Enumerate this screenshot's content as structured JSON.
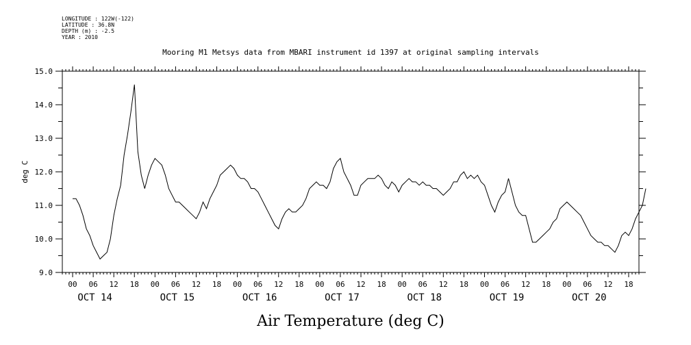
{
  "header": {
    "longitude": "LONGITUDE : 122W(-122)",
    "latitude": "LATITUDE : 36.8N",
    "depth": "DEPTH (m) : -2.5",
    "year": "YEAR : 2010"
  },
  "chart_data": {
    "type": "line",
    "title": "Mooring M1 Metsys data from MBARI instrument id 1397 at original sampling intervals",
    "xlabel": "Air Temperature (deg C)",
    "ylabel": "deg C",
    "ylim": [
      9.0,
      15.0
    ],
    "yticks": [
      9.0,
      10.0,
      11.0,
      12.0,
      13.0,
      14.0,
      15.0
    ],
    "ytick_labels": [
      "9.0",
      "10.0",
      "11.0",
      "12.0",
      "13.0",
      "14.0",
      "15.0"
    ],
    "xlim_hours": [
      -3,
      165
    ],
    "hour_tick_labels": [
      "00",
      "06",
      "12",
      "18"
    ],
    "day_labels": [
      "OCT 14",
      "OCT 15",
      "OCT 16",
      "OCT 17",
      "OCT 18",
      "OCT 19",
      "OCT 20"
    ],
    "grid": false,
    "series": [
      {
        "values": [
          {
            "t": "2010-10-14 00:00",
            "y": 11.2
          },
          {
            "t": "2010-10-14 01:00",
            "y": 11.2
          },
          {
            "t": "2010-10-14 02:00",
            "y": 11.0
          },
          {
            "t": "2010-10-14 03:00",
            "y": 10.7
          },
          {
            "t": "2010-10-14 04:00",
            "y": 10.3
          },
          {
            "t": "2010-10-14 05:00",
            "y": 10.1
          },
          {
            "t": "2010-10-14 06:00",
            "y": 9.8
          },
          {
            "t": "2010-10-14 07:00",
            "y": 9.6
          },
          {
            "t": "2010-10-14 08:00",
            "y": 9.4
          },
          {
            "t": "2010-10-14 09:00",
            "y": 9.5
          },
          {
            "t": "2010-10-14 10:00",
            "y": 9.6
          },
          {
            "t": "2010-10-14 11:00",
            "y": 10.0
          },
          {
            "t": "2010-10-14 12:00",
            "y": 10.7
          },
          {
            "t": "2010-10-14 13:00",
            "y": 11.2
          },
          {
            "t": "2010-10-14 14:00",
            "y": 11.6
          },
          {
            "t": "2010-10-14 15:00",
            "y": 12.5
          },
          {
            "t": "2010-10-14 16:00",
            "y": 13.1
          },
          {
            "t": "2010-10-14 17:00",
            "y": 13.8
          },
          {
            "t": "2010-10-14 18:00",
            "y": 14.6
          },
          {
            "t": "2010-10-14 19:00",
            "y": 12.6
          },
          {
            "t": "2010-10-14 20:00",
            "y": 11.9
          },
          {
            "t": "2010-10-14 21:00",
            "y": 11.5
          },
          {
            "t": "2010-10-14 22:00",
            "y": 11.9
          },
          {
            "t": "2010-10-14 23:00",
            "y": 12.2
          },
          {
            "t": "2010-10-15 00:00",
            "y": 12.4
          },
          {
            "t": "2010-10-15 01:00",
            "y": 12.3
          },
          {
            "t": "2010-10-15 02:00",
            "y": 12.2
          },
          {
            "t": "2010-10-15 03:00",
            "y": 11.9
          },
          {
            "t": "2010-10-15 04:00",
            "y": 11.5
          },
          {
            "t": "2010-10-15 05:00",
            "y": 11.3
          },
          {
            "t": "2010-10-15 06:00",
            "y": 11.1
          },
          {
            "t": "2010-10-15 07:00",
            "y": 11.1
          },
          {
            "t": "2010-10-15 08:00",
            "y": 11.0
          },
          {
            "t": "2010-10-15 09:00",
            "y": 10.9
          },
          {
            "t": "2010-10-15 10:00",
            "y": 10.8
          },
          {
            "t": "2010-10-15 11:00",
            "y": 10.7
          },
          {
            "t": "2010-10-15 12:00",
            "y": 10.6
          },
          {
            "t": "2010-10-15 13:00",
            "y": 10.8
          },
          {
            "t": "2010-10-15 14:00",
            "y": 11.1
          },
          {
            "t": "2010-10-15 15:00",
            "y": 10.9
          },
          {
            "t": "2010-10-15 16:00",
            "y": 11.2
          },
          {
            "t": "2010-10-15 17:00",
            "y": 11.4
          },
          {
            "t": "2010-10-15 18:00",
            "y": 11.6
          },
          {
            "t": "2010-10-15 19:00",
            "y": 11.9
          },
          {
            "t": "2010-10-15 20:00",
            "y": 12.0
          },
          {
            "t": "2010-10-15 21:00",
            "y": 12.1
          },
          {
            "t": "2010-10-15 22:00",
            "y": 12.2
          },
          {
            "t": "2010-10-15 23:00",
            "y": 12.1
          },
          {
            "t": "2010-10-16 00:00",
            "y": 11.9
          },
          {
            "t": "2010-10-16 01:00",
            "y": 11.8
          },
          {
            "t": "2010-10-16 02:00",
            "y": 11.8
          },
          {
            "t": "2010-10-16 03:00",
            "y": 11.7
          },
          {
            "t": "2010-10-16 04:00",
            "y": 11.5
          },
          {
            "t": "2010-10-16 05:00",
            "y": 11.5
          },
          {
            "t": "2010-10-16 06:00",
            "y": 11.4
          },
          {
            "t": "2010-10-16 07:00",
            "y": 11.2
          },
          {
            "t": "2010-10-16 08:00",
            "y": 11.0
          },
          {
            "t": "2010-10-16 09:00",
            "y": 10.8
          },
          {
            "t": "2010-10-16 10:00",
            "y": 10.6
          },
          {
            "t": "2010-10-16 11:00",
            "y": 10.4
          },
          {
            "t": "2010-10-16 12:00",
            "y": 10.3
          },
          {
            "t": "2010-10-16 13:00",
            "y": 10.6
          },
          {
            "t": "2010-10-16 14:00",
            "y": 10.8
          },
          {
            "t": "2010-10-16 15:00",
            "y": 10.9
          },
          {
            "t": "2010-10-16 16:00",
            "y": 10.8
          },
          {
            "t": "2010-10-16 17:00",
            "y": 10.8
          },
          {
            "t": "2010-10-16 18:00",
            "y": 10.9
          },
          {
            "t": "2010-10-16 19:00",
            "y": 11.0
          },
          {
            "t": "2010-10-16 20:00",
            "y": 11.2
          },
          {
            "t": "2010-10-16 21:00",
            "y": 11.5
          },
          {
            "t": "2010-10-16 22:00",
            "y": 11.6
          },
          {
            "t": "2010-10-16 23:00",
            "y": 11.7
          },
          {
            "t": "2010-10-17 00:00",
            "y": 11.6
          },
          {
            "t": "2010-10-17 01:00",
            "y": 11.6
          },
          {
            "t": "2010-10-17 02:00",
            "y": 11.5
          },
          {
            "t": "2010-10-17 03:00",
            "y": 11.7
          },
          {
            "t": "2010-10-17 04:00",
            "y": 12.1
          },
          {
            "t": "2010-10-17 05:00",
            "y": 12.3
          },
          {
            "t": "2010-10-17 06:00",
            "y": 12.4
          },
          {
            "t": "2010-10-17 07:00",
            "y": 12.0
          },
          {
            "t": "2010-10-17 08:00",
            "y": 11.8
          },
          {
            "t": "2010-10-17 09:00",
            "y": 11.6
          },
          {
            "t": "2010-10-17 10:00",
            "y": 11.3
          },
          {
            "t": "2010-10-17 11:00",
            "y": 11.3
          },
          {
            "t": "2010-10-17 12:00",
            "y": 11.6
          },
          {
            "t": "2010-10-17 13:00",
            "y": 11.7
          },
          {
            "t": "2010-10-17 14:00",
            "y": 11.8
          },
          {
            "t": "2010-10-17 15:00",
            "y": 11.8
          },
          {
            "t": "2010-10-17 16:00",
            "y": 11.8
          },
          {
            "t": "2010-10-17 17:00",
            "y": 11.9
          },
          {
            "t": "2010-10-17 18:00",
            "y": 11.8
          },
          {
            "t": "2010-10-17 19:00",
            "y": 11.6
          },
          {
            "t": "2010-10-17 20:00",
            "y": 11.5
          },
          {
            "t": "2010-10-17 21:00",
            "y": 11.7
          },
          {
            "t": "2010-10-17 22:00",
            "y": 11.6
          },
          {
            "t": "2010-10-17 23:00",
            "y": 11.4
          },
          {
            "t": "2010-10-18 00:00",
            "y": 11.6
          },
          {
            "t": "2010-10-18 01:00",
            "y": 11.7
          },
          {
            "t": "2010-10-18 02:00",
            "y": 11.8
          },
          {
            "t": "2010-10-18 03:00",
            "y": 11.7
          },
          {
            "t": "2010-10-18 04:00",
            "y": 11.7
          },
          {
            "t": "2010-10-18 05:00",
            "y": 11.6
          },
          {
            "t": "2010-10-18 06:00",
            "y": 11.7
          },
          {
            "t": "2010-10-18 07:00",
            "y": 11.6
          },
          {
            "t": "2010-10-18 08:00",
            "y": 11.6
          },
          {
            "t": "2010-10-18 09:00",
            "y": 11.5
          },
          {
            "t": "2010-10-18 10:00",
            "y": 11.5
          },
          {
            "t": "2010-10-18 11:00",
            "y": 11.4
          },
          {
            "t": "2010-10-18 12:00",
            "y": 11.3
          },
          {
            "t": "2010-10-18 13:00",
            "y": 11.4
          },
          {
            "t": "2010-10-18 14:00",
            "y": 11.5
          },
          {
            "t": "2010-10-18 15:00",
            "y": 11.7
          },
          {
            "t": "2010-10-18 16:00",
            "y": 11.7
          },
          {
            "t": "2010-10-18 17:00",
            "y": 11.9
          },
          {
            "t": "2010-10-18 18:00",
            "y": 12.0
          },
          {
            "t": "2010-10-18 19:00",
            "y": 11.8
          },
          {
            "t": "2010-10-18 20:00",
            "y": 11.9
          },
          {
            "t": "2010-10-18 21:00",
            "y": 11.8
          },
          {
            "t": "2010-10-18 22:00",
            "y": 11.9
          },
          {
            "t": "2010-10-18 23:00",
            "y": 11.7
          },
          {
            "t": "2010-10-19 00:00",
            "y": 11.6
          },
          {
            "t": "2010-10-19 01:00",
            "y": 11.3
          },
          {
            "t": "2010-10-19 02:00",
            "y": 11.0
          },
          {
            "t": "2010-10-19 03:00",
            "y": 10.8
          },
          {
            "t": "2010-10-19 04:00",
            "y": 11.1
          },
          {
            "t": "2010-10-19 05:00",
            "y": 11.3
          },
          {
            "t": "2010-10-19 06:00",
            "y": 11.4
          },
          {
            "t": "2010-10-19 07:00",
            "y": 11.8
          },
          {
            "t": "2010-10-19 08:00",
            "y": 11.4
          },
          {
            "t": "2010-10-19 09:00",
            "y": 11.0
          },
          {
            "t": "2010-10-19 10:00",
            "y": 10.8
          },
          {
            "t": "2010-10-19 11:00",
            "y": 10.7
          },
          {
            "t": "2010-10-19 12:00",
            "y": 10.7
          },
          {
            "t": "2010-10-19 13:00",
            "y": 10.3
          },
          {
            "t": "2010-10-19 14:00",
            "y": 9.9
          },
          {
            "t": "2010-10-19 15:00",
            "y": 9.9
          },
          {
            "t": "2010-10-19 16:00",
            "y": 10.0
          },
          {
            "t": "2010-10-19 17:00",
            "y": 10.1
          },
          {
            "t": "2010-10-19 18:00",
            "y": 10.2
          },
          {
            "t": "2010-10-19 19:00",
            "y": 10.3
          },
          {
            "t": "2010-10-19 20:00",
            "y": 10.5
          },
          {
            "t": "2010-10-19 21:00",
            "y": 10.6
          },
          {
            "t": "2010-10-19 22:00",
            "y": 10.9
          },
          {
            "t": "2010-10-19 23:00",
            "y": 11.0
          },
          {
            "t": "2010-10-20 00:00",
            "y": 11.1
          },
          {
            "t": "2010-10-20 01:00",
            "y": 11.0
          },
          {
            "t": "2010-10-20 02:00",
            "y": 10.9
          },
          {
            "t": "2010-10-20 03:00",
            "y": 10.8
          },
          {
            "t": "2010-10-20 04:00",
            "y": 10.7
          },
          {
            "t": "2010-10-20 05:00",
            "y": 10.5
          },
          {
            "t": "2010-10-20 06:00",
            "y": 10.3
          },
          {
            "t": "2010-10-20 07:00",
            "y": 10.1
          },
          {
            "t": "2010-10-20 08:00",
            "y": 10.0
          },
          {
            "t": "2010-10-20 09:00",
            "y": 9.9
          },
          {
            "t": "2010-10-20 10:00",
            "y": 9.9
          },
          {
            "t": "2010-10-20 11:00",
            "y": 9.8
          },
          {
            "t": "2010-10-20 12:00",
            "y": 9.8
          },
          {
            "t": "2010-10-20 13:00",
            "y": 9.7
          },
          {
            "t": "2010-10-20 14:00",
            "y": 9.6
          },
          {
            "t": "2010-10-20 15:00",
            "y": 9.8
          },
          {
            "t": "2010-10-20 16:00",
            "y": 10.1
          },
          {
            "t": "2010-10-20 17:00",
            "y": 10.2
          },
          {
            "t": "2010-10-20 18:00",
            "y": 10.1
          },
          {
            "t": "2010-10-20 19:00",
            "y": 10.3
          },
          {
            "t": "2010-10-20 20:00",
            "y": 10.6
          },
          {
            "t": "2010-10-20 21:00",
            "y": 10.8
          },
          {
            "t": "2010-10-20 22:00",
            "y": 11.0
          },
          {
            "t": "2010-10-20 23:00",
            "y": 11.5
          }
        ]
      }
    ]
  }
}
